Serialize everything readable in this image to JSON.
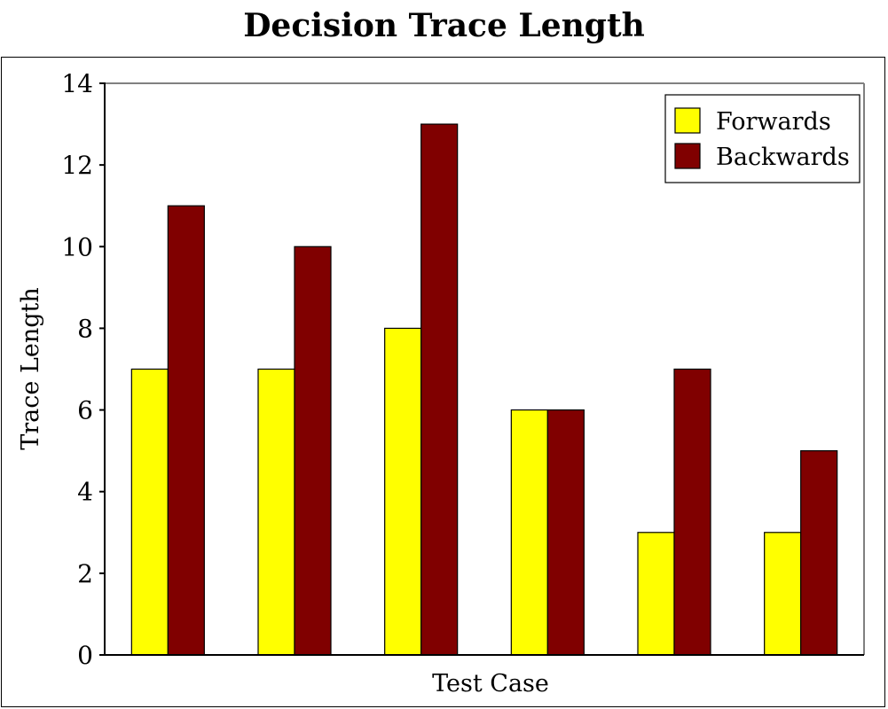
{
  "chart_data": {
    "type": "bar",
    "title": "Decision Trace Length",
    "xlabel": "Test Case",
    "ylabel": "Trace Length",
    "categories": [
      "",
      "",
      "",
      "",
      "",
      ""
    ],
    "series": [
      {
        "name": "Forwards",
        "values": [
          7,
          7,
          8,
          6,
          3,
          3
        ],
        "color": "#ffff00"
      },
      {
        "name": "Backwards",
        "values": [
          11,
          10,
          13,
          6,
          7,
          5
        ],
        "color": "#800000"
      }
    ],
    "ylim": [
      0,
      14
    ],
    "yticks": [
      0,
      2,
      4,
      6,
      8,
      10,
      12,
      14
    ],
    "grid": false,
    "legend_position": "top-right"
  }
}
